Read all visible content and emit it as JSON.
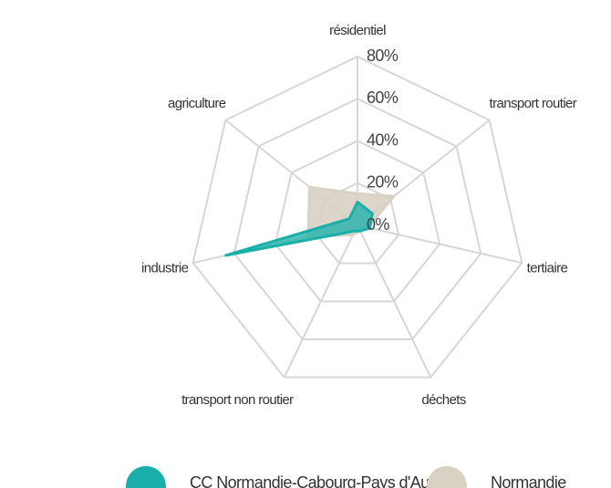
{
  "chart_data": {
    "type": "radar",
    "categories": [
      "résidentiel",
      "transport routier",
      "tertiaire",
      "déchets",
      "transport non routier",
      "industrie",
      "agriculture"
    ],
    "series": [
      {
        "name": "CC Normandie-Cabourg-Pays d'Auge",
        "color": "#1aafa8",
        "values": [
          11,
          9,
          6,
          3,
          3,
          64,
          5
        ]
      },
      {
        "name": "Normandie",
        "color": "#d8d2c4",
        "values": [
          15,
          22,
          5,
          3,
          5,
          24,
          29
        ]
      }
    ],
    "rlim": [
      0,
      80
    ],
    "rticks": [
      {
        "value": 0,
        "label": "0%"
      },
      {
        "value": 20,
        "label": "20%"
      },
      {
        "value": 40,
        "label": "40%"
      },
      {
        "value": 60,
        "label": "60%"
      },
      {
        "value": 80,
        "label": "80%"
      }
    ],
    "grid": true
  }
}
